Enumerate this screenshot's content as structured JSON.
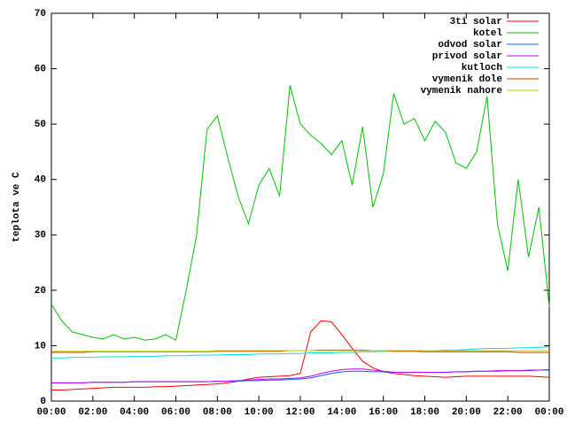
{
  "chart_data": {
    "type": "line",
    "y_label": "teplota ve C",
    "x": [
      0,
      0.5,
      1,
      1.5,
      2,
      2.5,
      3,
      3.5,
      4,
      4.5,
      5,
      5.5,
      6,
      6.5,
      7,
      7.5,
      8,
      8.5,
      9,
      9.5,
      10,
      10.5,
      11,
      11.5,
      12,
      12.5,
      13,
      13.5,
      14,
      14.5,
      15,
      15.5,
      16,
      16.5,
      17,
      17.5,
      18,
      18.5,
      19,
      19.5,
      20,
      20.5,
      21,
      21.5,
      22,
      22.5,
      23,
      23.5,
      24
    ],
    "xlim": [
      0,
      24
    ],
    "xticks": [
      {
        "value": 0,
        "label": "00:00"
      },
      {
        "value": 2,
        "label": "02:00"
      },
      {
        "value": 4,
        "label": "04:00"
      },
      {
        "value": 6,
        "label": "06:00"
      },
      {
        "value": 8,
        "label": "08:00"
      },
      {
        "value": 10,
        "label": "10:00"
      },
      {
        "value": 12,
        "label": "12:00"
      },
      {
        "value": 14,
        "label": "14:00"
      },
      {
        "value": 16,
        "label": "16:00"
      },
      {
        "value": 18,
        "label": "18:00"
      },
      {
        "value": 20,
        "label": "20:00"
      },
      {
        "value": 22,
        "label": "22:00"
      },
      {
        "value": 24,
        "label": "00:00"
      }
    ],
    "ylim": [
      0,
      70
    ],
    "yticks": [
      0,
      10,
      20,
      30,
      40,
      50,
      60,
      70
    ],
    "grid": false,
    "legend": "top-right",
    "series": [
      {
        "name": "3ti solar",
        "color": "#ff0000",
        "values": [
          2,
          2,
          2.1,
          2.2,
          2.3,
          2.4,
          2.5,
          2.5,
          2.5,
          2.5,
          2.6,
          2.6,
          2.7,
          2.8,
          2.9,
          3,
          3.1,
          3.3,
          3.6,
          4,
          4.3,
          4.4,
          4.5,
          4.6,
          5,
          12.5,
          14.5,
          14.3,
          12,
          9.5,
          7.2,
          6,
          5.3,
          5,
          4.8,
          4.6,
          4.5,
          4.4,
          4.3,
          4.4,
          4.5,
          4.5,
          4.5,
          4.5,
          4.5,
          4.5,
          4.5,
          4.4,
          4.3
        ]
      },
      {
        "name": "kotel",
        "color": "#00c000",
        "values": [
          17.5,
          14.5,
          12.5,
          12,
          11.5,
          11.2,
          12,
          11.2,
          11.5,
          11,
          11.2,
          12,
          11,
          20,
          30,
          49,
          51.5,
          44,
          37,
          32,
          39,
          42,
          37,
          57,
          50,
          48,
          46.5,
          44.5,
          47,
          39,
          49.5,
          35,
          41,
          55.5,
          50,
          51,
          47,
          50.5,
          48.5,
          43,
          42,
          45,
          55,
          32,
          23.5,
          40,
          26,
          35,
          17
        ]
      },
      {
        "name": "odvod solar",
        "color": "#0060ff",
        "values": [
          3.3,
          3.3,
          3.3,
          3.3,
          3.4,
          3.4,
          3.4,
          3.4,
          3.5,
          3.5,
          3.5,
          3.5,
          3.5,
          3.5,
          3.5,
          3.5,
          3.6,
          3.6,
          3.6,
          3.7,
          3.7,
          3.8,
          3.8,
          3.9,
          4,
          4.2,
          4.6,
          5,
          5.3,
          5.4,
          5.4,
          5.3,
          5.3,
          5.2,
          5.2,
          5.2,
          5.2,
          5.2,
          5.2,
          5.3,
          5.3,
          5.4,
          5.4,
          5.4,
          5.5,
          5.5,
          5.5,
          5.6,
          5.6
        ]
      },
      {
        "name": "privod solar",
        "color": "#c000ff",
        "values": [
          3.3,
          3.3,
          3.3,
          3.3,
          3.4,
          3.4,
          3.4,
          3.4,
          3.5,
          3.5,
          3.5,
          3.5,
          3.5,
          3.5,
          3.5,
          3.5,
          3.6,
          3.6,
          3.7,
          3.8,
          3.9,
          4,
          4,
          4.1,
          4.2,
          4.5,
          5,
          5.4,
          5.7,
          5.8,
          5.8,
          5.6,
          5.4,
          5.2,
          5.2,
          5.2,
          5.2,
          5.2,
          5.2,
          5.3,
          5.3,
          5.4,
          5.4,
          5.5,
          5.5,
          5.5,
          5.6,
          5.6,
          5.7
        ]
      },
      {
        "name": "kutloch",
        "color": "#00e0e0",
        "values": [
          7.8,
          7.8,
          7.9,
          7.9,
          7.9,
          8,
          8,
          8,
          8.1,
          8.1,
          8.1,
          8.2,
          8.2,
          8.2,
          8.3,
          8.3,
          8.3,
          8.4,
          8.4,
          8.4,
          8.5,
          8.5,
          8.5,
          8.6,
          8.6,
          8.7,
          8.7,
          8.7,
          8.8,
          8.8,
          8.9,
          8.9,
          9,
          9,
          9,
          9.1,
          9.1,
          9.1,
          9.2,
          9.2,
          9.3,
          9.4,
          9.5,
          9.5,
          9.5,
          9.6,
          9.6,
          9.7,
          9.8
        ]
      },
      {
        "name": "vymenik dole",
        "color": "#c04000",
        "values": [
          8.8,
          8.8,
          8.8,
          8.8,
          8.9,
          8.9,
          8.9,
          8.9,
          8.9,
          8.9,
          8.9,
          8.9,
          8.9,
          8.9,
          8.9,
          8.9,
          9,
          9,
          9,
          9,
          9,
          9,
          9,
          9.1,
          9.1,
          9.1,
          9.2,
          9.2,
          9.2,
          9.2,
          9.2,
          9.1,
          9.1,
          9,
          9,
          9,
          8.9,
          8.9,
          8.9,
          8.9,
          8.9,
          8.9,
          8.9,
          8.9,
          8.9,
          8.8,
          8.8,
          8.8,
          8.8
        ]
      },
      {
        "name": "vymenik nahore",
        "color": "#c8c800",
        "values": [
          9,
          9,
          9,
          9,
          9,
          9,
          9,
          9,
          9,
          9,
          9,
          9,
          9,
          9,
          9,
          9,
          9.1,
          9.1,
          9.1,
          9.1,
          9.1,
          9.1,
          9.1,
          9.1,
          9.1,
          9.1,
          9.1,
          9.1,
          9.1,
          9.1,
          9.1,
          9.1,
          9.1,
          9.1,
          9.1,
          9.1,
          9.1,
          9.1,
          9.1,
          9.1,
          9.1,
          9.1,
          9.1,
          9.1,
          9.1,
          9.1,
          9.1,
          9.1,
          9.1
        ]
      }
    ]
  }
}
